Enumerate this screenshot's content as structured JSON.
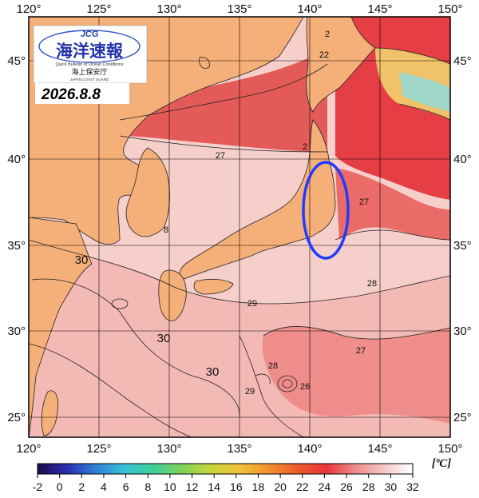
{
  "logo": {
    "brand": "JCG",
    "title_jp": "海洋速報",
    "subtitle_en": "Quick Bulletin of Ocean Conditions",
    "agency_jp": "海上保安庁",
    "agency_en": "JAPAN COAST GUARD"
  },
  "date": "2026.8.8",
  "axes": {
    "lon_labels": [
      "120°",
      "125°",
      "130°",
      "135°",
      "140°",
      "145°",
      "150°"
    ],
    "lat_labels": [
      "45°",
      "40°",
      "35°",
      "30°",
      "25°"
    ]
  },
  "contour_labels": [
    "2",
    "22",
    "2",
    "27",
    "27",
    "8",
    "28",
    "29",
    "30",
    "30",
    "30",
    "27",
    "28",
    "26",
    "29"
  ],
  "highlight": {
    "shape": "ellipse",
    "color": "#1e3cff"
  },
  "colorbar": {
    "ticks": [
      "-2",
      "0",
      "2",
      "4",
      "6",
      "8",
      "10",
      "12",
      "14",
      "16",
      "18",
      "20",
      "22",
      "24",
      "26",
      "28",
      "30",
      "32"
    ],
    "unit": "[ºC]",
    "stops": [
      "#1a0a4a",
      "#2b2bb0",
      "#2f7fd6",
      "#35c3d6",
      "#3fcf9a",
      "#7fd35a",
      "#c9d43a",
      "#f2c23a",
      "#f4912e",
      "#ee5a2a",
      "#e8343a",
      "#ee8a8a",
      "#f6c8c8",
      "#ffffff"
    ]
  },
  "colors": {
    "land": "#f5b07a",
    "sea_warm": "#f6c8c4",
    "sea_hot": "#e85555",
    "grid": "#000000"
  }
}
